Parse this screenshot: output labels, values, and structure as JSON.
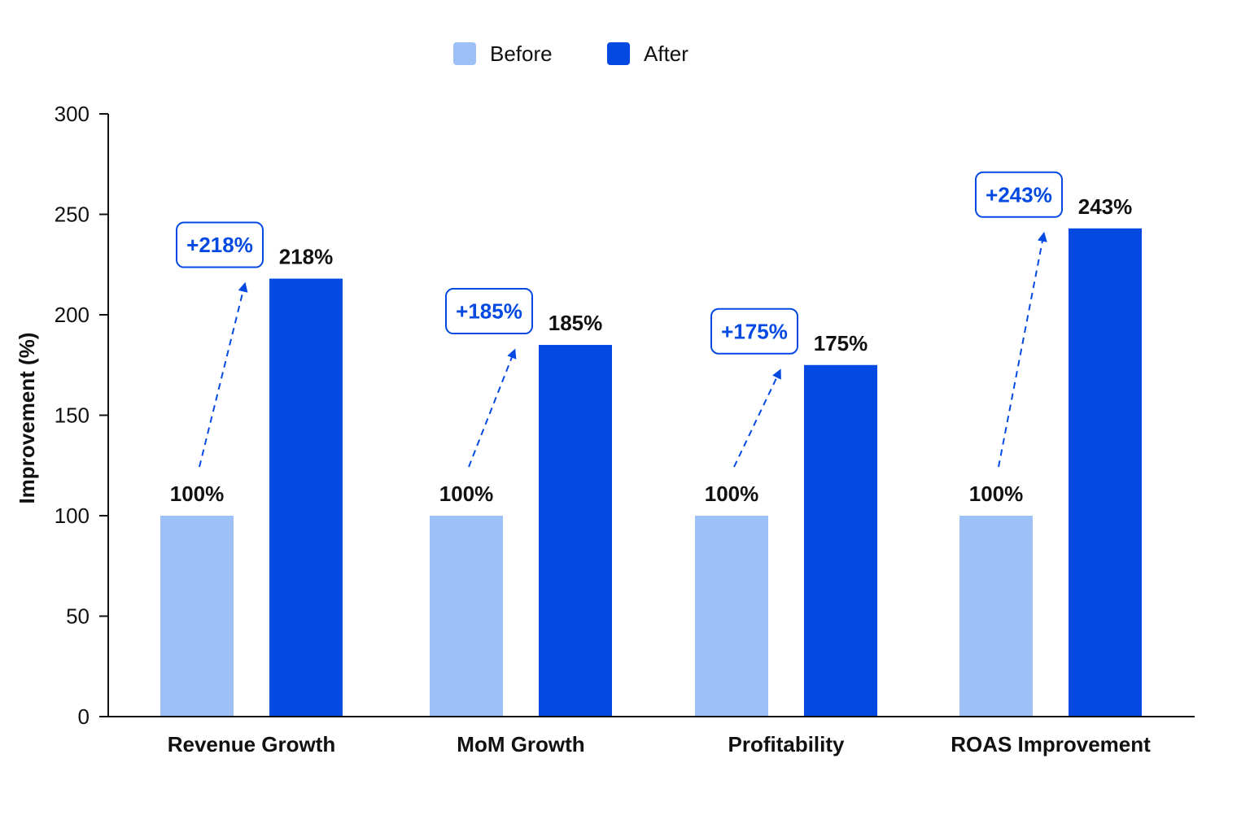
{
  "chart_data": {
    "type": "bar",
    "title": "",
    "xlabel": "",
    "ylabel": "Improvement (%)",
    "ylim": [
      0,
      300
    ],
    "yticks": [
      0,
      50,
      100,
      150,
      200,
      250,
      300
    ],
    "grid": false,
    "legend_position": "top-center",
    "categories": [
      "Revenue Growth",
      "MoM Growth",
      "Profitability",
      "ROAS Improvement"
    ],
    "series": [
      {
        "name": "Before",
        "color": "#9dc1f7",
        "values": [
          100,
          100,
          100,
          100
        ],
        "labels": [
          "100%",
          "100%",
          "100%",
          "100%"
        ]
      },
      {
        "name": "After",
        "color": "#0549e3",
        "values": [
          218,
          185,
          175,
          243
        ],
        "labels": [
          "218%",
          "185%",
          "175%",
          "243%"
        ]
      }
    ],
    "annotations": [
      "+218%",
      "+185%",
      "+175%",
      "+243%"
    ],
    "annotation_color": "#0549e3"
  }
}
